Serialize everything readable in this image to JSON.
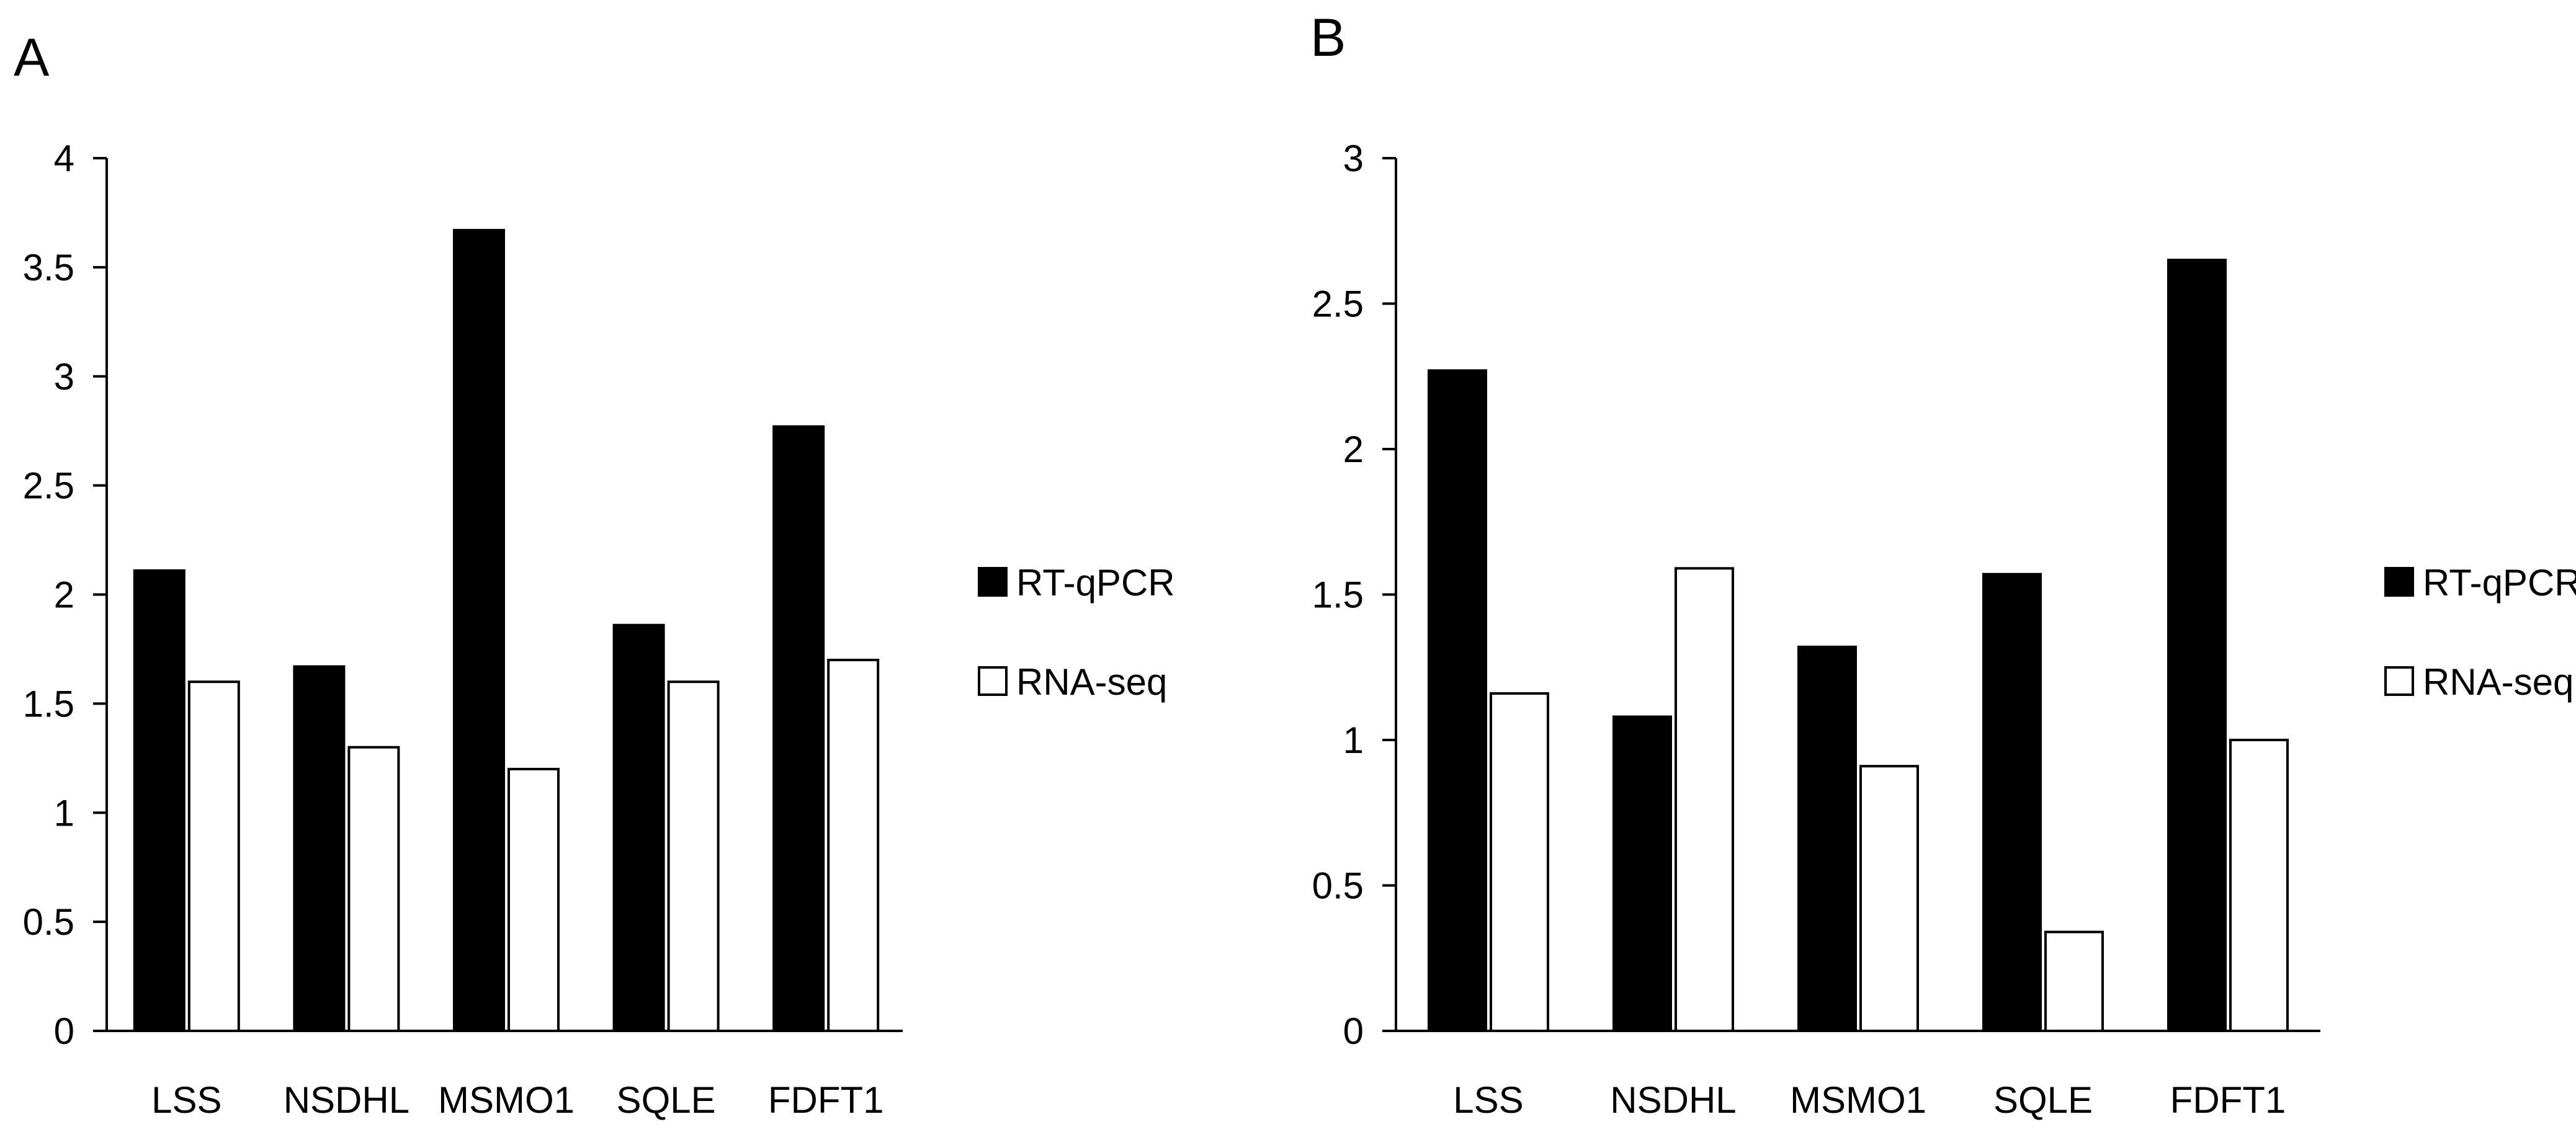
{
  "chart_data": [
    {
      "panel": "A",
      "type": "bar",
      "title": "",
      "xlabel": "",
      "ylabel": "",
      "categories": [
        "LSS",
        "NSDHL",
        "MSMO1",
        "SQLE",
        "FDFT1"
      ],
      "series": [
        {
          "name": "RT-qPCR",
          "values": [
            2.11,
            1.67,
            3.67,
            1.86,
            2.77
          ],
          "color": "#000000"
        },
        {
          "name": "RNA-seq",
          "values": [
            1.6,
            1.3,
            1.2,
            1.6,
            1.7
          ],
          "color": "#ffffff"
        }
      ],
      "ylim": [
        0,
        4
      ],
      "yticks": [
        0,
        0.5,
        1,
        1.5,
        2,
        2.5,
        3,
        3.5,
        4
      ],
      "ytick_labels": [
        "0",
        "0.5",
        "1",
        "1.5",
        "2",
        "2.5",
        "3",
        "3.5",
        "4"
      ],
      "grid": false,
      "legend_position": "right"
    },
    {
      "panel": "B",
      "type": "bar",
      "title": "",
      "xlabel": "",
      "ylabel": "",
      "categories": [
        "LSS",
        "NSDHL",
        "MSMO1",
        "SQLE",
        "FDFT1"
      ],
      "series": [
        {
          "name": "RT-qPCR",
          "values": [
            2.27,
            1.08,
            1.32,
            1.57,
            2.65
          ],
          "color": "#000000"
        },
        {
          "name": "RNA-seq",
          "values": [
            1.16,
            1.59,
            0.91,
            0.34,
            1.0
          ],
          "color": "#ffffff"
        }
      ],
      "ylim": [
        0,
        3
      ],
      "yticks": [
        0,
        0.5,
        1,
        1.5,
        2,
        2.5,
        3
      ],
      "ytick_labels": [
        "0",
        "0.5",
        "1",
        "1.5",
        "2",
        "2.5",
        "3"
      ],
      "grid": false,
      "legend_position": "right"
    }
  ]
}
